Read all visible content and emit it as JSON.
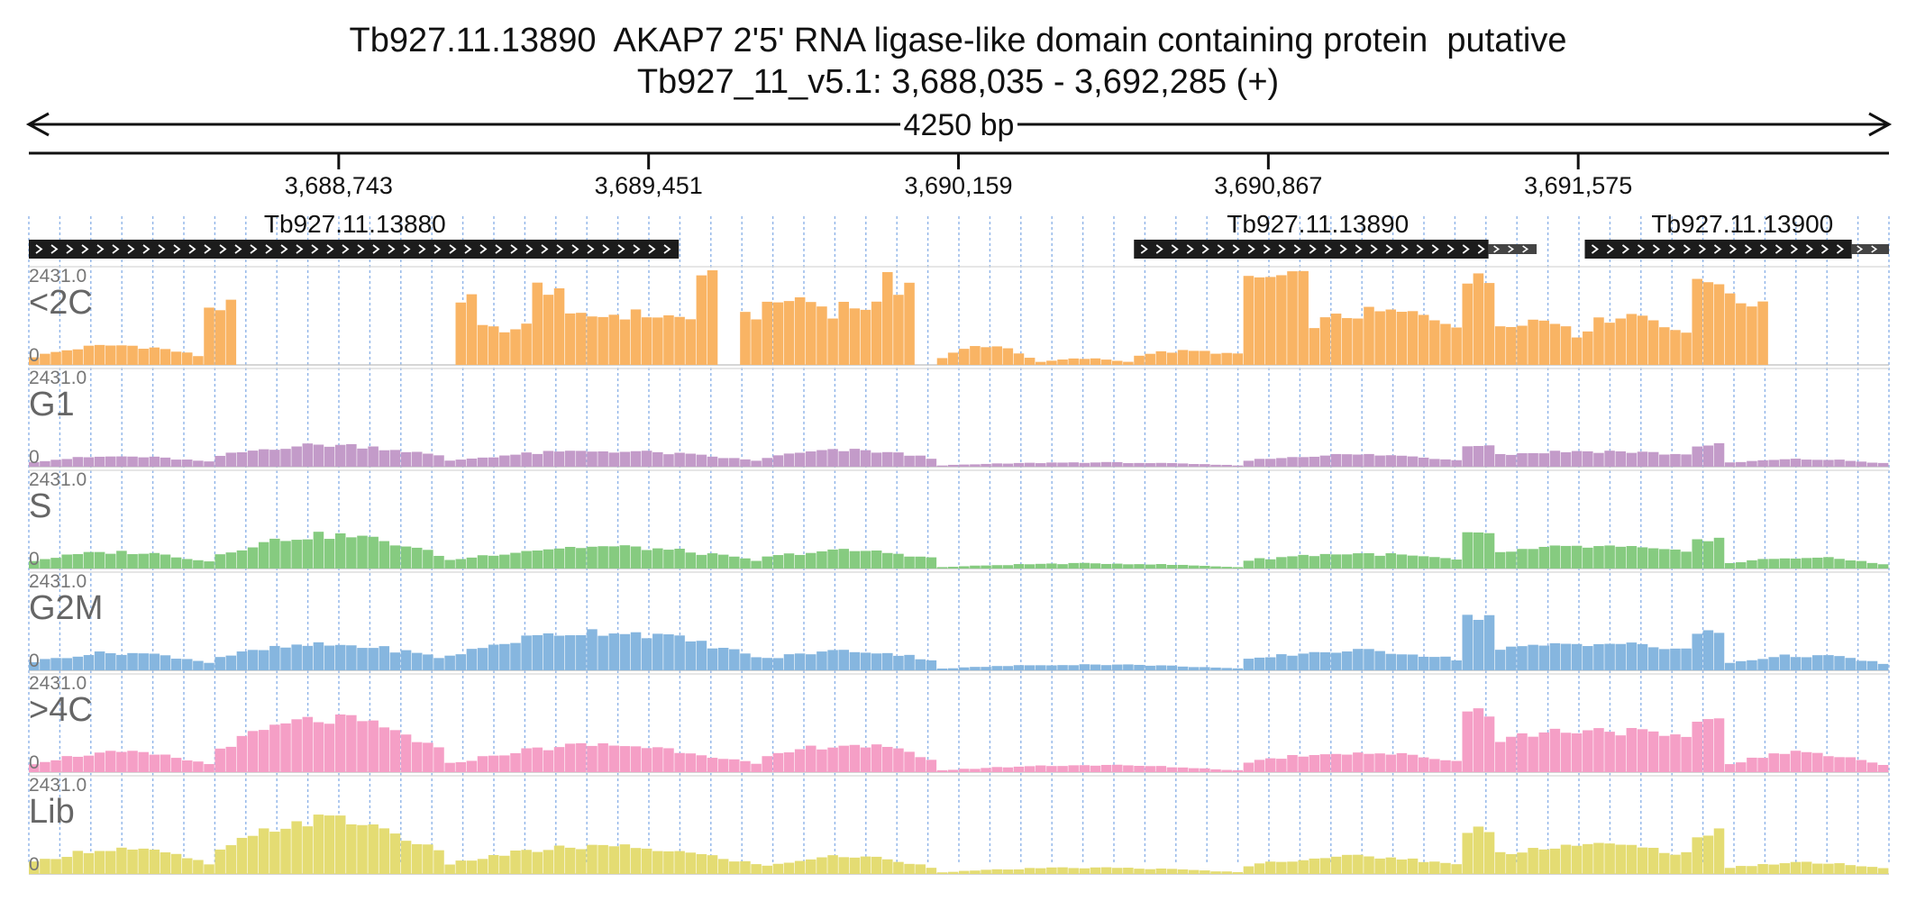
{
  "header": {
    "title": "Tb927.11.13890  AKAP7 2'5' RNA ligase-like domain containing protein  putative",
    "subtitle": "Tb927_11_v5.1: 3,688,035 - 3,692,285 (+)"
  },
  "colors": {
    "<2C": "#f9b464",
    "G1": "#c39bc9",
    "S": "#86cb80",
    "G2M": "#86b6df",
    ">4C": "#f59fc6",
    "Lib": "#e4dc73",
    "gene": "#1c1c1c",
    "grid": "#8fb4e8"
  },
  "chart_data": {
    "type": "area",
    "region": {
      "chromosome": "Tb927_11_v5.1",
      "start": 3688035,
      "end": 3692285,
      "strand": "+"
    },
    "span_label": "4250 bp",
    "ruler_ticks": [
      {
        "pos": 3688743,
        "label": "3,688,743"
      },
      {
        "pos": 3689451,
        "label": "3,689,451"
      },
      {
        "pos": 3690159,
        "label": "3,690,159"
      },
      {
        "pos": 3690867,
        "label": "3,690,867"
      },
      {
        "pos": 3691575,
        "label": "3,691,575"
      }
    ],
    "genes": [
      {
        "name": "Tb927.11.13880",
        "start": 3688035,
        "end": 3689520,
        "cds_end": 3689520,
        "label_pos": 3688780
      },
      {
        "name": "Tb927.11.13890",
        "start": 3690560,
        "end": 3691480,
        "cds_end": 3691370,
        "label_pos": 3690980
      },
      {
        "name": "Tb927.11.13900",
        "start": 3691590,
        "end": 3692285,
        "cds_end": 3692200,
        "label_pos": 3691950
      }
    ],
    "ymax": 2431.0,
    "ymax_label": "2431.0",
    "ymin_label": "0",
    "bin_bp": 25,
    "tracks": [
      {
        "name": "<2C",
        "segments": [
          {
            "start": 3688035,
            "end": 3688445,
            "base": 180,
            "peak": 500,
            "shape": "dome"
          },
          {
            "start": 3688445,
            "end": 3688498,
            "base": 1500,
            "peak": 1500,
            "shape": "flat"
          },
          {
            "start": 3689000,
            "end": 3689070,
            "base": 1700,
            "peak": 1700,
            "shape": "flat"
          },
          {
            "start": 3689070,
            "end": 3689190,
            "base": 900,
            "peak": 1000,
            "shape": "flat"
          },
          {
            "start": 3689190,
            "end": 3689250,
            "base": 2000,
            "peak": 2000,
            "shape": "flat"
          },
          {
            "start": 3689250,
            "end": 3689560,
            "base": 1150,
            "peak": 1300,
            "shape": "dome"
          },
          {
            "start": 3689560,
            "end": 3689620,
            "base": 2400,
            "peak": 2431,
            "shape": "flat"
          },
          {
            "start": 3689650,
            "end": 3689700,
            "base": 1300,
            "peak": 1300,
            "shape": "flat"
          },
          {
            "start": 3689700,
            "end": 3689880,
            "base": 1300,
            "peak": 1700,
            "shape": "dome"
          },
          {
            "start": 3689880,
            "end": 3689990,
            "base": 1500,
            "peak": 1550,
            "shape": "flat"
          },
          {
            "start": 3689990,
            "end": 3690060,
            "base": 1800,
            "peak": 2431,
            "shape": "flat"
          },
          {
            "start": 3690110,
            "end": 3690340,
            "base": 100,
            "peak": 500,
            "shape": "dome"
          },
          {
            "start": 3690340,
            "end": 3690560,
            "base": 60,
            "peak": 160,
            "shape": "dome"
          },
          {
            "start": 3690560,
            "end": 3690810,
            "base": 250,
            "peak": 350,
            "shape": "dome"
          },
          {
            "start": 3690810,
            "end": 3690950,
            "base": 2150,
            "peak": 2250,
            "shape": "flat"
          },
          {
            "start": 3690950,
            "end": 3691320,
            "base": 1000,
            "peak": 1350,
            "shape": "dome"
          },
          {
            "start": 3691320,
            "end": 3691380,
            "base": 2150,
            "peak": 2150,
            "shape": "flat"
          },
          {
            "start": 3691380,
            "end": 3691560,
            "base": 1000,
            "peak": 1150,
            "shape": "dome"
          },
          {
            "start": 3691560,
            "end": 3691830,
            "base": 700,
            "peak": 1300,
            "shape": "dome"
          },
          {
            "start": 3691830,
            "end": 3691900,
            "base": 2200,
            "peak": 2300,
            "shape": "flat"
          },
          {
            "start": 3691900,
            "end": 3692000,
            "base": 1600,
            "peak": 1700,
            "shape": "flat"
          }
        ]
      },
      {
        "name": "G1",
        "segments": [
          {
            "start": 3688035,
            "end": 3688450,
            "base": 120,
            "peak": 260,
            "shape": "dome"
          },
          {
            "start": 3688450,
            "end": 3688990,
            "base": 240,
            "peak": 560,
            "shape": "dome"
          },
          {
            "start": 3688990,
            "end": 3689700,
            "base": 150,
            "peak": 400,
            "shape": "dome"
          },
          {
            "start": 3689700,
            "end": 3690110,
            "base": 200,
            "peak": 420,
            "shape": "dome"
          },
          {
            "start": 3690110,
            "end": 3690810,
            "base": 30,
            "peak": 110,
            "shape": "dome"
          },
          {
            "start": 3690810,
            "end": 3691320,
            "base": 150,
            "peak": 310,
            "shape": "dome"
          },
          {
            "start": 3691320,
            "end": 3691380,
            "base": 580,
            "peak": 600,
            "shape": "flat"
          },
          {
            "start": 3691380,
            "end": 3691830,
            "base": 300,
            "peak": 400,
            "shape": "dome"
          },
          {
            "start": 3691830,
            "end": 3691900,
            "base": 550,
            "peak": 580,
            "shape": "flat"
          },
          {
            "start": 3691900,
            "end": 3692285,
            "base": 80,
            "peak": 190,
            "shape": "dome"
          }
        ]
      },
      {
        "name": "S",
        "segments": [
          {
            "start": 3688035,
            "end": 3688450,
            "base": 180,
            "peak": 420,
            "shape": "dome"
          },
          {
            "start": 3688450,
            "end": 3688990,
            "base": 300,
            "peak": 850,
            "shape": "dome"
          },
          {
            "start": 3688990,
            "end": 3689700,
            "base": 200,
            "peak": 560,
            "shape": "dome"
          },
          {
            "start": 3689700,
            "end": 3690110,
            "base": 250,
            "peak": 460,
            "shape": "dome"
          },
          {
            "start": 3690110,
            "end": 3690810,
            "base": 30,
            "peak": 130,
            "shape": "dome"
          },
          {
            "start": 3690810,
            "end": 3691320,
            "base": 200,
            "peak": 380,
            "shape": "dome"
          },
          {
            "start": 3691320,
            "end": 3691380,
            "base": 840,
            "peak": 860,
            "shape": "flat"
          },
          {
            "start": 3691380,
            "end": 3691830,
            "base": 400,
            "peak": 560,
            "shape": "dome"
          },
          {
            "start": 3691830,
            "end": 3691900,
            "base": 780,
            "peak": 820,
            "shape": "flat"
          },
          {
            "start": 3691900,
            "end": 3692285,
            "base": 100,
            "peak": 280,
            "shape": "dome"
          }
        ]
      },
      {
        "name": "G2M",
        "segments": [
          {
            "start": 3688035,
            "end": 3688450,
            "base": 200,
            "peak": 450,
            "shape": "dome"
          },
          {
            "start": 3688450,
            "end": 3688990,
            "base": 300,
            "peak": 650,
            "shape": "dome"
          },
          {
            "start": 3688990,
            "end": 3689700,
            "base": 350,
            "peak": 1000,
            "shape": "dome"
          },
          {
            "start": 3689700,
            "end": 3690110,
            "base": 250,
            "peak": 500,
            "shape": "dome"
          },
          {
            "start": 3690110,
            "end": 3690810,
            "base": 40,
            "peak": 150,
            "shape": "dome"
          },
          {
            "start": 3690810,
            "end": 3691320,
            "base": 250,
            "peak": 500,
            "shape": "dome"
          },
          {
            "start": 3691320,
            "end": 3691380,
            "base": 1380,
            "peak": 1400,
            "shape": "flat"
          },
          {
            "start": 3691380,
            "end": 3691830,
            "base": 500,
            "peak": 700,
            "shape": "dome"
          },
          {
            "start": 3691830,
            "end": 3691900,
            "base": 950,
            "peak": 1000,
            "shape": "flat"
          },
          {
            "start": 3691900,
            "end": 3692285,
            "base": 150,
            "peak": 380,
            "shape": "dome"
          }
        ]
      },
      {
        "name": ">4C",
        "segments": [
          {
            "start": 3688035,
            "end": 3688450,
            "base": 200,
            "peak": 500,
            "shape": "dome"
          },
          {
            "start": 3688450,
            "end": 3688990,
            "base": 500,
            "peak": 1350,
            "shape": "dome"
          },
          {
            "start": 3688990,
            "end": 3689700,
            "base": 200,
            "peak": 700,
            "shape": "dome"
          },
          {
            "start": 3689700,
            "end": 3690110,
            "base": 300,
            "peak": 700,
            "shape": "dome"
          },
          {
            "start": 3690110,
            "end": 3690810,
            "base": 40,
            "peak": 180,
            "shape": "dome"
          },
          {
            "start": 3690810,
            "end": 3691320,
            "base": 250,
            "peak": 500,
            "shape": "dome"
          },
          {
            "start": 3691320,
            "end": 3691380,
            "base": 1600,
            "peak": 1620,
            "shape": "flat"
          },
          {
            "start": 3691380,
            "end": 3691830,
            "base": 800,
            "peak": 1100,
            "shape": "dome"
          },
          {
            "start": 3691830,
            "end": 3691900,
            "base": 1350,
            "peak": 1400,
            "shape": "flat"
          },
          {
            "start": 3691900,
            "end": 3692285,
            "base": 150,
            "peak": 500,
            "shape": "dome"
          }
        ]
      },
      {
        "name": "Lib",
        "segments": [
          {
            "start": 3688035,
            "end": 3688450,
            "base": 250,
            "peak": 650,
            "shape": "dome"
          },
          {
            "start": 3688450,
            "end": 3688990,
            "base": 450,
            "peak": 1400,
            "shape": "dome"
          },
          {
            "start": 3688990,
            "end": 3689700,
            "base": 250,
            "peak": 700,
            "shape": "dome"
          },
          {
            "start": 3689700,
            "end": 3690110,
            "base": 150,
            "peak": 450,
            "shape": "dome"
          },
          {
            "start": 3690110,
            "end": 3690810,
            "base": 40,
            "peak": 160,
            "shape": "dome"
          },
          {
            "start": 3690810,
            "end": 3691320,
            "base": 200,
            "peak": 450,
            "shape": "dome"
          },
          {
            "start": 3691320,
            "end": 3691380,
            "base": 1150,
            "peak": 1180,
            "shape": "flat"
          },
          {
            "start": 3691380,
            "end": 3691830,
            "base": 500,
            "peak": 750,
            "shape": "dome"
          },
          {
            "start": 3691830,
            "end": 3691900,
            "base": 1000,
            "peak": 1050,
            "shape": "flat"
          },
          {
            "start": 3691900,
            "end": 3692285,
            "base": 120,
            "peak": 300,
            "shape": "dome"
          }
        ]
      }
    ]
  }
}
